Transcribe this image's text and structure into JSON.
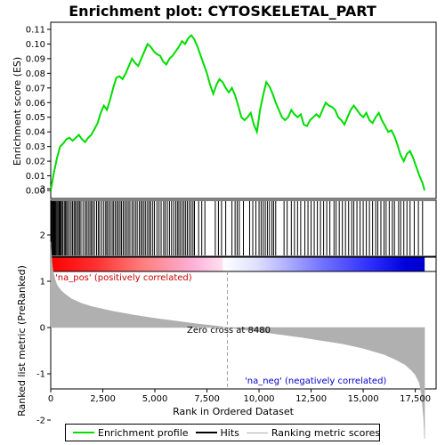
{
  "chart_data": {
    "type": "line",
    "title": "Enrichment plot: CYTOSKELETAL_PART",
    "top_panel": {
      "ylabel": "Enrichment score (ES)",
      "ylim": [
        0.0,
        0.11
      ],
      "yticks": [
        "0.00",
        "0.01",
        "0.02",
        "0.03",
        "0.04",
        "0.05",
        "0.06",
        "0.07",
        "0.08",
        "0.09",
        "0.10",
        "0.11"
      ],
      "ytick_values": [
        0.0,
        0.01,
        0.02,
        0.03,
        0.04,
        0.05,
        0.06,
        0.07,
        0.08,
        0.09,
        0.1,
        0.11
      ],
      "series": [
        {
          "name": "Enrichment profile",
          "color": "#00dd00",
          "x": [
            0,
            150,
            300,
            450,
            600,
            750,
            900,
            1050,
            1200,
            1350,
            1500,
            1650,
            1800,
            1950,
            2100,
            2250,
            2400,
            2550,
            2700,
            2850,
            3000,
            3150,
            3300,
            3450,
            3600,
            3750,
            3900,
            4050,
            4200,
            4350,
            4500,
            4650,
            4800,
            4950,
            5100,
            5250,
            5400,
            5550,
            5700,
            5850,
            6000,
            6150,
            6300,
            6450,
            6600,
            6750,
            6900,
            7050,
            7200,
            7350,
            7500,
            7650,
            7800,
            7950,
            8100,
            8250,
            8400,
            8550,
            8700,
            8850,
            9000,
            9150,
            9300,
            9450,
            9600,
            9750,
            9900,
            10050,
            10200,
            10350,
            10500,
            10650,
            10800,
            10950,
            11100,
            11250,
            11400,
            11550,
            11700,
            11850,
            12000,
            12150,
            12300,
            12450,
            12600,
            12750,
            12900,
            13050,
            13200,
            13350,
            13500,
            13650,
            13800,
            13950,
            14100,
            14250,
            14400,
            14550,
            14700,
            14850,
            15000,
            15150,
            15300,
            15450,
            15600,
            15750,
            15900,
            16050,
            16200,
            16350,
            16500,
            16650,
            16800,
            16950,
            17100,
            17250,
            17400,
            17550,
            17700,
            17850,
            17950
          ],
          "y": [
            0.0,
            0.012,
            0.022,
            0.03,
            0.032,
            0.035,
            0.036,
            0.034,
            0.036,
            0.038,
            0.035,
            0.033,
            0.036,
            0.038,
            0.042,
            0.046,
            0.053,
            0.058,
            0.055,
            0.062,
            0.07,
            0.077,
            0.078,
            0.076,
            0.08,
            0.085,
            0.09,
            0.087,
            0.085,
            0.09,
            0.095,
            0.1,
            0.098,
            0.095,
            0.093,
            0.092,
            0.088,
            0.086,
            0.09,
            0.092,
            0.095,
            0.098,
            0.102,
            0.1,
            0.104,
            0.106,
            0.103,
            0.098,
            0.092,
            0.086,
            0.08,
            0.072,
            0.066,
            0.072,
            0.076,
            0.074,
            0.07,
            0.067,
            0.07,
            0.065,
            0.058,
            0.05,
            0.048,
            0.05,
            0.053,
            0.045,
            0.04,
            0.055,
            0.065,
            0.074,
            0.071,
            0.066,
            0.06,
            0.055,
            0.05,
            0.048,
            0.05,
            0.055,
            0.052,
            0.05,
            0.052,
            0.045,
            0.044,
            0.048,
            0.05,
            0.052,
            0.05,
            0.055,
            0.06,
            0.058,
            0.057,
            0.055,
            0.05,
            0.048,
            0.045,
            0.05,
            0.055,
            0.058,
            0.055,
            0.052,
            0.05,
            0.053,
            0.048,
            0.046,
            0.05,
            0.053,
            0.048,
            0.044,
            0.04,
            0.041,
            0.037,
            0.031,
            0.024,
            0.02,
            0.025,
            0.027,
            0.022,
            0.016,
            0.01,
            0.005,
            0.0
          ]
        }
      ]
    },
    "hits": {
      "name": "Hits",
      "color": "#000000",
      "positions": [
        30,
        60,
        95,
        130,
        170,
        210,
        250,
        300,
        350,
        400,
        430,
        470,
        520,
        580,
        650,
        700,
        760,
        820,
        900,
        980,
        1050,
        1120,
        1180,
        1250,
        1320,
        1380,
        1450,
        1550,
        1650,
        1720,
        1800,
        1880,
        1950,
        2020,
        2100,
        2200,
        2280,
        2350,
        2450,
        2550,
        2640,
        2700,
        2780,
        2860,
        2950,
        3020,
        3100,
        3180,
        3250,
        3330,
        3400,
        3480,
        3560,
        3640,
        3720,
        3800,
        3900,
        3980,
        4070,
        4150,
        4250,
        4330,
        4400,
        4480,
        4560,
        4650,
        4730,
        4800,
        4900,
        4980,
        5100,
        5200,
        5300,
        5420,
        5500,
        5600,
        5700,
        5800,
        5900,
        6000,
        6080,
        6150,
        6230,
        6320,
        6400,
        6480,
        6560,
        6650,
        6740,
        6830,
        6900,
        7100,
        7250,
        7400,
        7900,
        8050,
        8200,
        8400,
        8700,
        8850,
        8950,
        9050,
        9250,
        9550,
        9700,
        9850,
        10000,
        10100,
        10200,
        10300,
        10400,
        10500,
        10620,
        10700,
        10800,
        11200,
        11350,
        11550,
        11700,
        11850,
        12000,
        12200,
        12350,
        12500,
        12650,
        12800,
        12950,
        13100,
        13250,
        13400,
        13600,
        13700,
        13850,
        14000,
        14150,
        14300,
        14450,
        14550,
        14700,
        14850,
        15000,
        15150,
        15300,
        15450,
        15600,
        15700,
        15850,
        16000,
        16100,
        16250,
        16400,
        16500,
        16700,
        16800,
        16950,
        17100,
        17250,
        17450,
        17650,
        17850
      ]
    },
    "ranked_metric": {
      "name": "Ranking metric scores",
      "color": "#b0b0b0",
      "ylabel": "Ranked list metric (PreRanked)",
      "ylim": [
        -2.5,
        3.5
      ],
      "yticks": [
        "-2",
        "-1",
        "0",
        "1",
        "2",
        "3"
      ],
      "ytick_values": [
        -2,
        -1,
        0,
        1,
        2,
        3
      ],
      "x": [
        0,
        50,
        100,
        200,
        300,
        500,
        700,
        1000,
        1500,
        2000,
        3000,
        4000,
        5000,
        6000,
        7000,
        8000,
        8480,
        9000,
        10000,
        11000,
        12000,
        13000,
        14000,
        15000,
        16000,
        16500,
        17000,
        17300,
        17500,
        17700,
        17800,
        17900,
        17950
      ],
      "y": [
        1.85,
        1.45,
        1.25,
        1.05,
        0.92,
        0.8,
        0.72,
        0.62,
        0.52,
        0.45,
        0.35,
        0.27,
        0.2,
        0.14,
        0.08,
        0.03,
        0.0,
        -0.03,
        -0.09,
        -0.15,
        -0.21,
        -0.28,
        -0.35,
        -0.45,
        -0.58,
        -0.68,
        -0.8,
        -0.92,
        -1.02,
        -1.2,
        -1.45,
        -1.95,
        -2.4
      ]
    },
    "xlabel": "Rank in Ordered Dataset",
    "xlim": [
      0,
      18500
    ],
    "xticks": [
      "0",
      "2,500",
      "5,000",
      "7,500",
      "10,000",
      "12,500",
      "15,000",
      "17,500"
    ],
    "xtick_values": [
      0,
      2500,
      5000,
      7500,
      10000,
      12500,
      15000,
      17500
    ],
    "zero_cross": 8480,
    "zero_cross_label": "Zero cross at 8480",
    "pos_label": "'na_pos' (positively correlated)",
    "neg_label": "'na_neg' (negatively correlated)",
    "pos_color": "#cc0000",
    "neg_color": "#0000cc"
  },
  "legend": {
    "profile": "Enrichment profile",
    "hits": "Hits",
    "ranking": "Ranking metric scores"
  }
}
